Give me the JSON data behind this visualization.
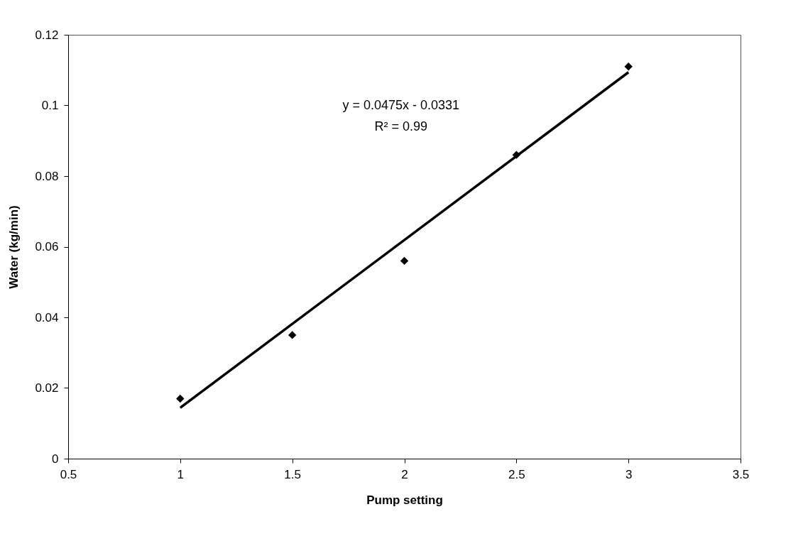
{
  "chart_data": {
    "type": "scatter",
    "xlabel": "Pump setting",
    "ylabel": "Water (kg/min)",
    "x": [
      1,
      1.5,
      2,
      2.5,
      3
    ],
    "series": [
      {
        "color": "#000000",
        "marker": "diamond",
        "values": [
          0.017,
          0.035,
          0.056,
          0.086,
          0.111
        ]
      },
      {
        "type": "line",
        "color": "#000000",
        "x": [
          1,
          3
        ],
        "values": [
          0.0144,
          0.1094
        ]
      }
    ],
    "annotations": [
      "y = 0.0475x - 0.0331",
      "R² = 0.99"
    ],
    "xlim": [
      0.5,
      3.5
    ],
    "xticks": [
      0.5,
      1,
      1.5,
      2,
      2.5,
      3,
      3.5
    ],
    "ylim": [
      0,
      0.12
    ],
    "yticks": [
      0,
      0.02,
      0.04,
      0.06,
      0.08,
      0.1,
      0.12
    ],
    "grid": false
  }
}
